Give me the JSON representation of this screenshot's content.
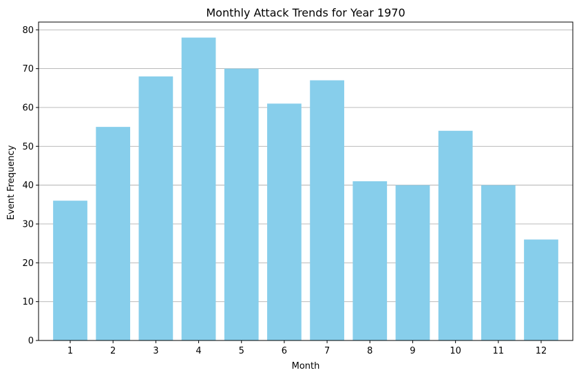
{
  "colors": {
    "bar": "#87ceeb",
    "grid": "#b0b0b0",
    "axis": "#000000"
  },
  "chart_data": {
    "type": "bar",
    "title": "Monthly Attack Trends for Year 1970",
    "xlabel": "Month",
    "ylabel": "Event Frequency",
    "categories": [
      "1",
      "2",
      "3",
      "4",
      "5",
      "6",
      "7",
      "8",
      "9",
      "10",
      "11",
      "12"
    ],
    "values": [
      36,
      55,
      68,
      78,
      70,
      61,
      67,
      41,
      40,
      54,
      40,
      26
    ],
    "ylim": [
      0,
      82
    ],
    "yticks": [
      0,
      10,
      20,
      30,
      40,
      50,
      60,
      70,
      80
    ],
    "grid": "y-axis only",
    "legend": "none"
  }
}
